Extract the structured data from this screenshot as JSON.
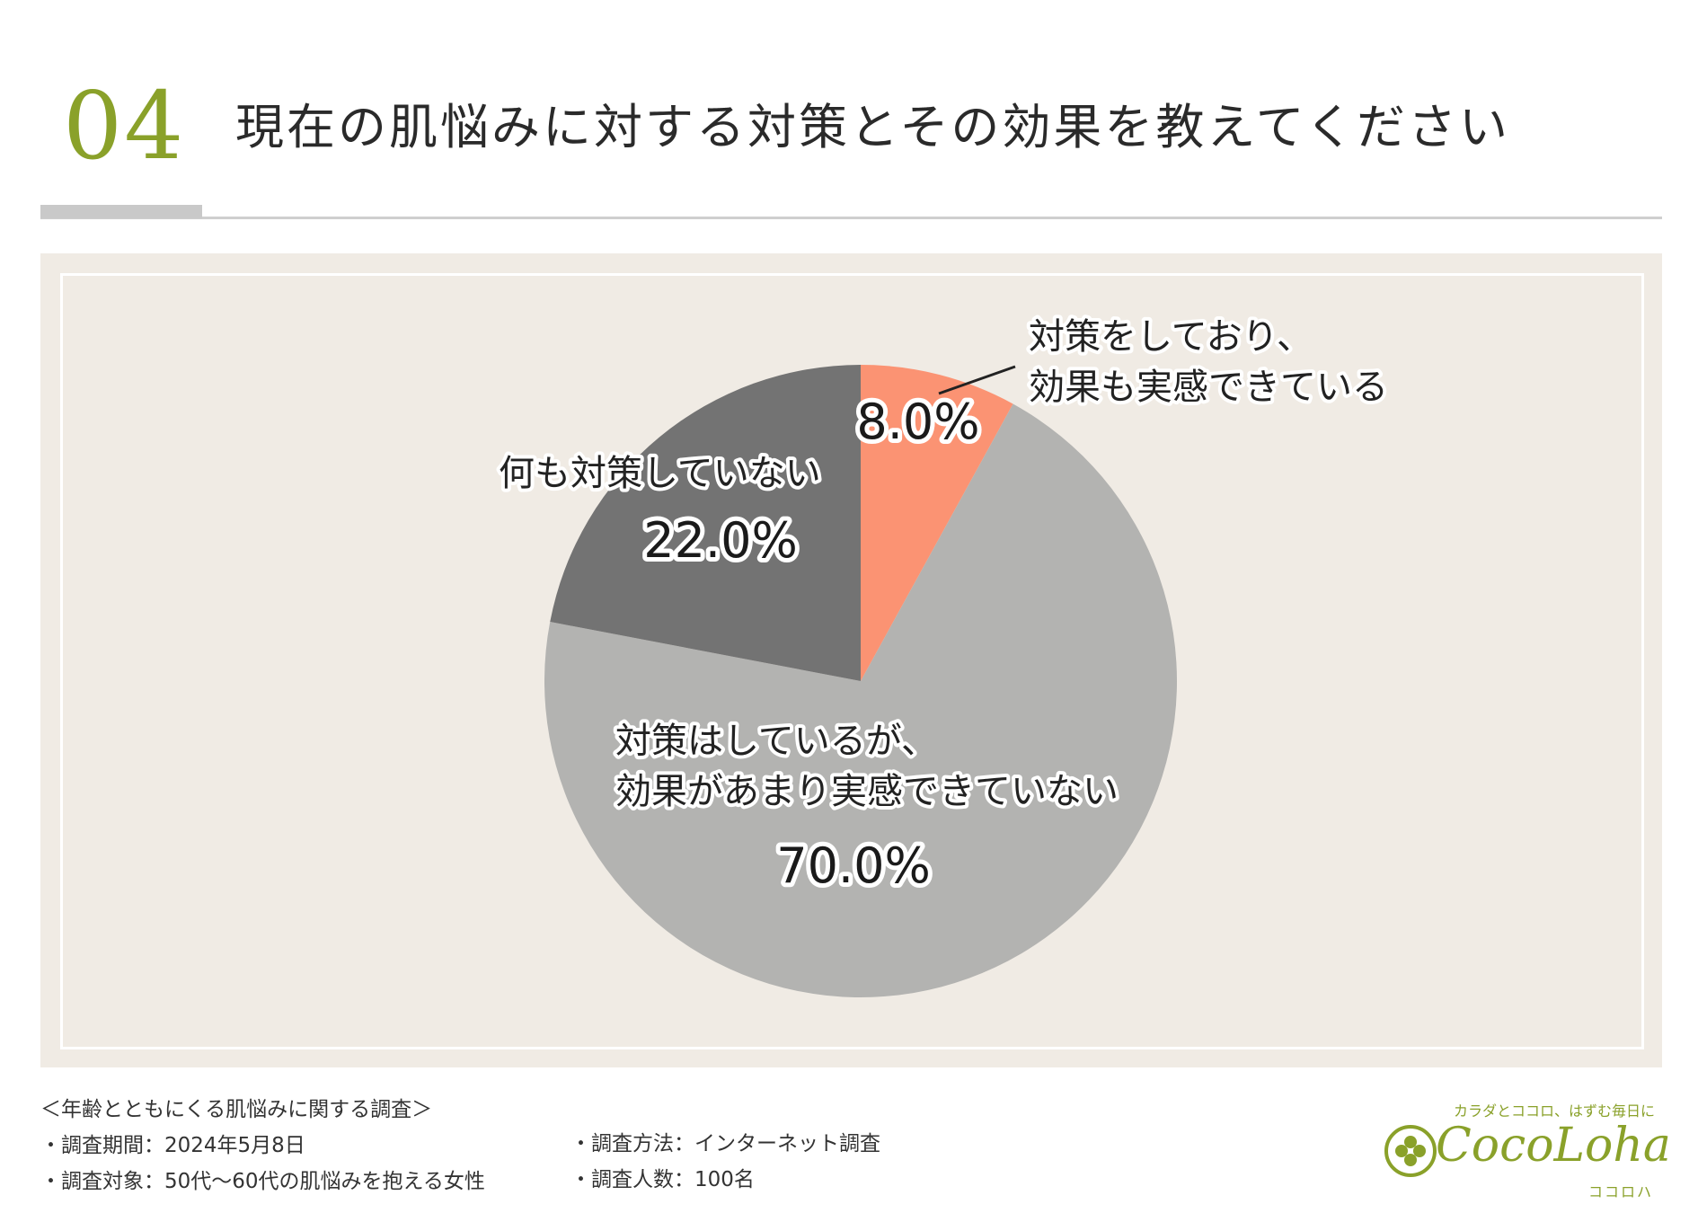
{
  "header": {
    "number": "04",
    "title": "現在の肌悩みに対する対策とその効果を教えてください"
  },
  "colors": {
    "accent": "#8aa12a",
    "slice_effective": "#fb9373",
    "slice_not_effective": "#b3b3b1",
    "slice_none": "#737373",
    "panel_bg": "#f0ebe4"
  },
  "chart_data": {
    "type": "pie",
    "title": "",
    "slices": [
      {
        "label_lines": [
          "対策をしており、",
          "効果も実感できている"
        ],
        "value": 8.0,
        "value_label": "8.0%",
        "color": "#fb9373"
      },
      {
        "label_lines": [
          "対策はしているが、",
          "効果があまり実感できていない"
        ],
        "value": 70.0,
        "value_label": "70.0%",
        "color": "#b3b3b1"
      },
      {
        "label_lines": [
          "何も対策していない"
        ],
        "value": 22.0,
        "value_label": "22.0%",
        "color": "#737373"
      }
    ]
  },
  "footer": {
    "survey_title": "＜年齢とともにくる肌悩みに関する調査＞",
    "period": "・調査期間：2024年5月8日",
    "target": "・調査対象：50代〜60代の肌悩みを抱える女性",
    "method": "・調査方法：インターネット調査",
    "count": "・調査人数：100名"
  },
  "logo": {
    "tagline": "カラダとココロ、はずむ毎日に",
    "brand": "CocoLoha",
    "sub": "ココロハ",
    "icon": "clover-icon"
  }
}
